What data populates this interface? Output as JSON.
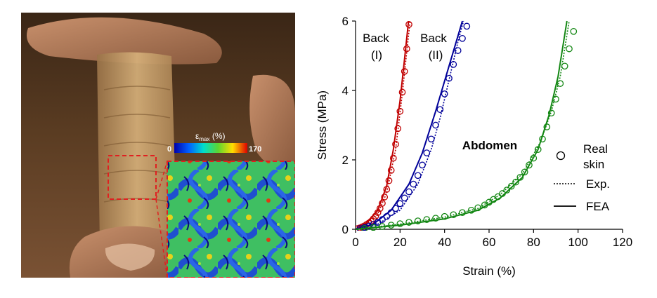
{
  "colorbar": {
    "label_main": "ε",
    "label_sub": "max",
    "label_unit": " (%)",
    "min": "0",
    "max": "170"
  },
  "chart_data": {
    "type": "scatter",
    "xlabel": "Strain (%)",
    "ylabel": "Stress (MPa)",
    "xlim": [
      0,
      120
    ],
    "ylim": [
      0,
      6
    ],
    "xticks": [
      "0",
      "20",
      "40",
      "60",
      "80",
      "100",
      "120"
    ],
    "yticks": [
      "0",
      "2",
      "4",
      "6"
    ],
    "colors": {
      "back1": "#c00000",
      "back2": "#000099",
      "abdomen": "#138713"
    },
    "labels": {
      "back1_line1": "Back",
      "back1_line2": "(I)",
      "back2_line1": "Back",
      "back2_line2": "(II)",
      "abdomen": "Abdomen"
    },
    "legend": {
      "position": "right",
      "entries": [
        {
          "symbol": "circle",
          "label_line1": "Real",
          "label_line2": "skin"
        },
        {
          "symbol": "dotted",
          "label_line1": "Exp."
        },
        {
          "symbol": "solid",
          "label_line1": "FEA"
        }
      ]
    },
    "series": [
      {
        "key": "back1",
        "points": [
          [
            1,
            0.02
          ],
          [
            2,
            0.04
          ],
          [
            3,
            0.07
          ],
          [
            4,
            0.1
          ],
          [
            5,
            0.14
          ],
          [
            6,
            0.18
          ],
          [
            7,
            0.23
          ],
          [
            8,
            0.3
          ],
          [
            9,
            0.38
          ],
          [
            10,
            0.48
          ],
          [
            11,
            0.6
          ],
          [
            12,
            0.75
          ],
          [
            13,
            0.93
          ],
          [
            14,
            1.15
          ],
          [
            15,
            1.4
          ],
          [
            16,
            1.7
          ],
          [
            17,
            2.05
          ],
          [
            18,
            2.45
          ],
          [
            19,
            2.9
          ],
          [
            20,
            3.4
          ],
          [
            21,
            3.95
          ],
          [
            22,
            4.55
          ],
          [
            23,
            5.2
          ],
          [
            24,
            5.9
          ]
        ],
        "exp": [
          [
            0,
            0
          ],
          [
            6,
            0.2
          ],
          [
            10,
            0.45
          ],
          [
            14,
            1.05
          ],
          [
            18,
            2.3
          ],
          [
            21,
            3.9
          ],
          [
            23,
            5.1
          ],
          [
            24.5,
            6
          ]
        ],
        "fea": [
          [
            0,
            0
          ],
          [
            5,
            0.18
          ],
          [
            10,
            0.55
          ],
          [
            14,
            1.25
          ],
          [
            17,
            2.3
          ],
          [
            20,
            3.7
          ],
          [
            22,
            4.9
          ],
          [
            23.8,
            6
          ]
        ]
      },
      {
        "key": "back2",
        "points": [
          [
            2,
            0.02
          ],
          [
            4,
            0.05
          ],
          [
            6,
            0.09
          ],
          [
            8,
            0.14
          ],
          [
            10,
            0.2
          ],
          [
            12,
            0.28
          ],
          [
            14,
            0.37
          ],
          [
            16,
            0.48
          ],
          [
            18,
            0.6
          ],
          [
            20,
            0.74
          ],
          [
            22,
            0.9
          ],
          [
            24,
            1.08
          ],
          [
            26,
            1.3
          ],
          [
            28,
            1.55
          ],
          [
            30,
            1.85
          ],
          [
            32,
            2.2
          ],
          [
            34,
            2.6
          ],
          [
            36,
            3.0
          ],
          [
            38,
            3.45
          ],
          [
            40,
            3.9
          ],
          [
            42,
            4.35
          ],
          [
            44,
            4.75
          ],
          [
            46,
            5.15
          ],
          [
            48,
            5.5
          ],
          [
            50,
            5.85
          ]
        ],
        "exp": [
          [
            0,
            0
          ],
          [
            10,
            0.15
          ],
          [
            20,
            0.55
          ],
          [
            28,
            1.3
          ],
          [
            34,
            2.3
          ],
          [
            38,
            3.2
          ],
          [
            42,
            4.3
          ],
          [
            46,
            5.4
          ],
          [
            48.5,
            6
          ]
        ],
        "fea": [
          [
            0,
            0
          ],
          [
            8,
            0.15
          ],
          [
            16,
            0.55
          ],
          [
            24,
            1.3
          ],
          [
            30,
            2.2
          ],
          [
            36,
            3.4
          ],
          [
            42,
            4.7
          ],
          [
            48,
            6
          ]
        ]
      },
      {
        "key": "abdomen",
        "points": [
          [
            4,
            0.02
          ],
          [
            8,
            0.05
          ],
          [
            12,
            0.08
          ],
          [
            16,
            0.12
          ],
          [
            20,
            0.16
          ],
          [
            24,
            0.2
          ],
          [
            28,
            0.24
          ],
          [
            32,
            0.28
          ],
          [
            36,
            0.32
          ],
          [
            40,
            0.37
          ],
          [
            44,
            0.42
          ],
          [
            48,
            0.48
          ],
          [
            52,
            0.55
          ],
          [
            55,
            0.62
          ],
          [
            58,
            0.7
          ],
          [
            60,
            0.78
          ],
          [
            62,
            0.86
          ],
          [
            64,
            0.94
          ],
          [
            66,
            1.03
          ],
          [
            68,
            1.13
          ],
          [
            70,
            1.24
          ],
          [
            72,
            1.36
          ],
          [
            74,
            1.5
          ],
          [
            76,
            1.65
          ],
          [
            78,
            1.85
          ],
          [
            80,
            2.05
          ],
          [
            82,
            2.3
          ],
          [
            84,
            2.6
          ],
          [
            86,
            2.95
          ],
          [
            88,
            3.35
          ],
          [
            90,
            3.75
          ],
          [
            92,
            4.2
          ],
          [
            94,
            4.7
          ],
          [
            96,
            5.2
          ],
          [
            98,
            5.7
          ]
        ],
        "exp": [
          [
            0,
            0
          ],
          [
            20,
            0.15
          ],
          [
            40,
            0.35
          ],
          [
            55,
            0.6
          ],
          [
            65,
            1.0
          ],
          [
            75,
            1.6
          ],
          [
            83,
            2.5
          ],
          [
            88,
            3.4
          ],
          [
            92,
            4.4
          ],
          [
            96,
            6
          ]
        ],
        "fea": [
          [
            0,
            0
          ],
          [
            20,
            0.12
          ],
          [
            40,
            0.3
          ],
          [
            55,
            0.55
          ],
          [
            65,
            0.9
          ],
          [
            75,
            1.5
          ],
          [
            82,
            2.3
          ],
          [
            87,
            3.3
          ],
          [
            91,
            4.4
          ],
          [
            95,
            6
          ]
        ]
      }
    ]
  }
}
